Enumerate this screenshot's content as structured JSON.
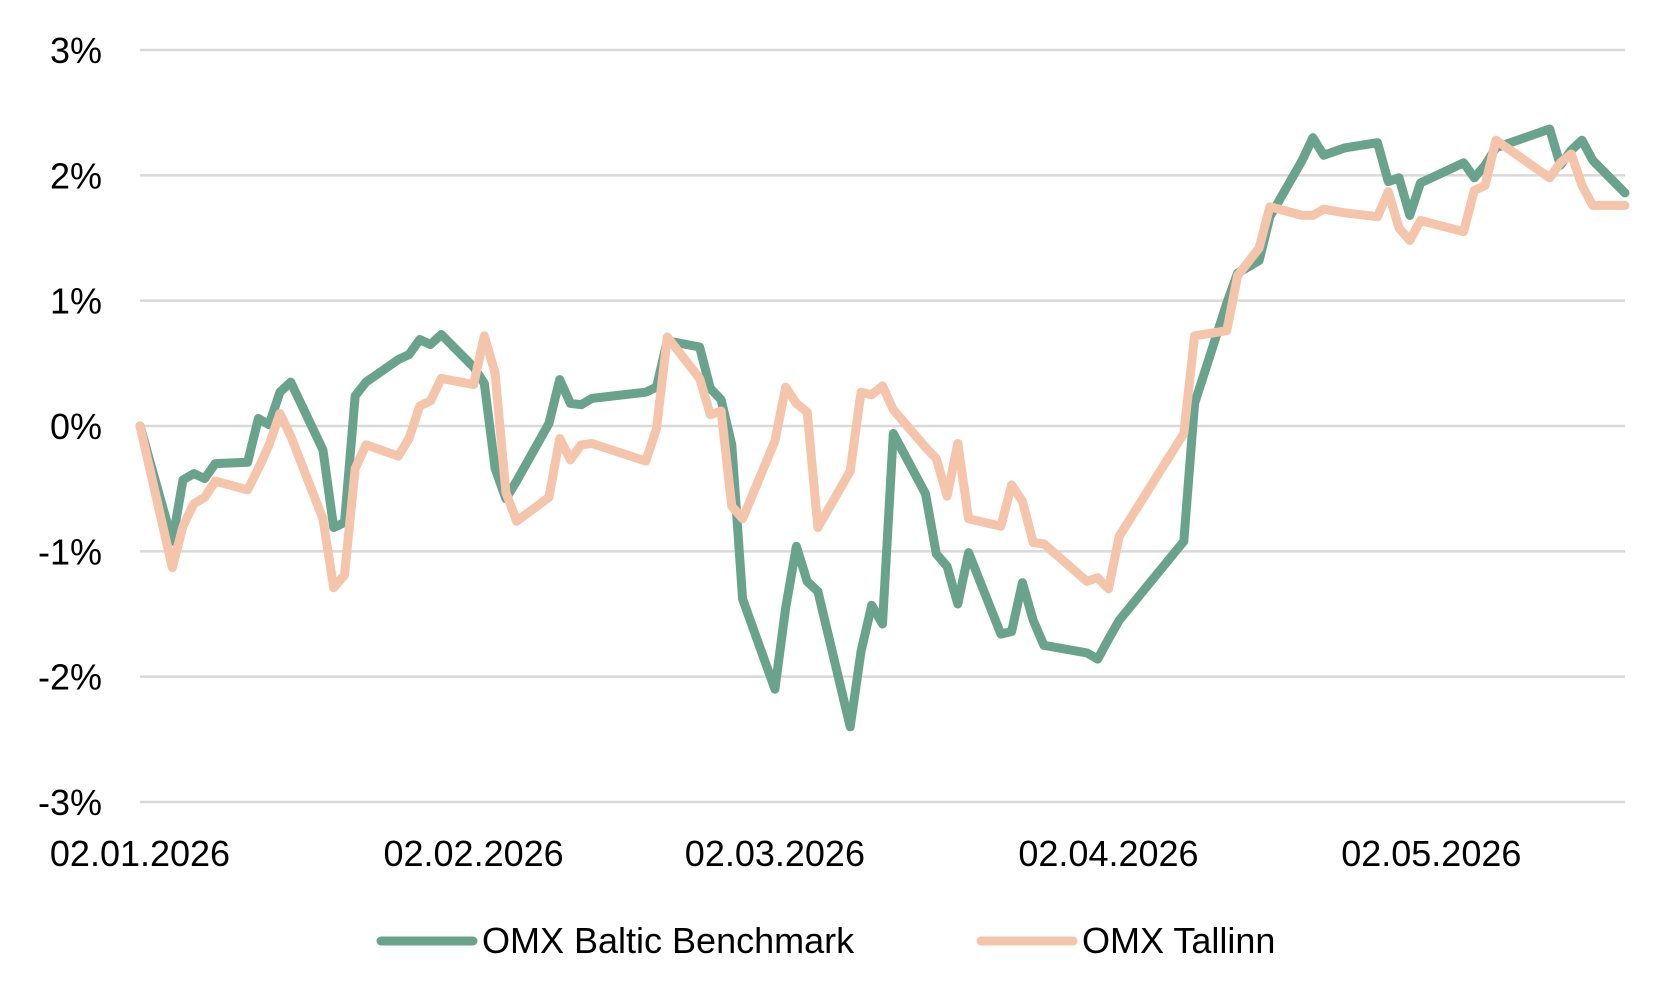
{
  "chart_data": {
    "type": "line",
    "title": "",
    "xlabel": "",
    "ylabel": "",
    "ylim": [
      -3,
      3
    ],
    "y_ticks": [
      3,
      2,
      1,
      0,
      -1,
      -2,
      -3
    ],
    "y_tick_labels": [
      "3%",
      "2%",
      "1%",
      "0%",
      "-1%",
      "-2%",
      "-3%"
    ],
    "x_range": [
      "2026-01-02",
      "2026-05-20"
    ],
    "x_ticks": [
      "2026-01-02",
      "2026-02-02",
      "2026-03-02",
      "2026-04-02",
      "2026-05-02"
    ],
    "x_tick_labels": [
      "02.01.2026",
      "02.02.2026",
      "02.03.2026",
      "02.04.2026",
      "02.05.2026"
    ],
    "grid": "horizontal",
    "legend": "bottom-center",
    "series": [
      {
        "name": "OMX Baltic Benchmark",
        "color": "#6aa38d",
        "points": [
          [
            "2026-01-02",
            0.0
          ],
          [
            "2026-01-05",
            -0.92
          ],
          [
            "2026-01-06",
            -0.43
          ],
          [
            "2026-01-07",
            -0.38
          ],
          [
            "2026-01-08",
            -0.42
          ],
          [
            "2026-01-09",
            -0.3
          ],
          [
            "2026-01-12",
            -0.29
          ],
          [
            "2026-01-13",
            0.06
          ],
          [
            "2026-01-14",
            0.01
          ],
          [
            "2026-01-15",
            0.27
          ],
          [
            "2026-01-16",
            0.35
          ],
          [
            "2026-01-19",
            -0.19
          ],
          [
            "2026-01-20",
            -0.81
          ],
          [
            "2026-01-21",
            -0.77
          ],
          [
            "2026-01-22",
            0.24
          ],
          [
            "2026-01-23",
            0.35
          ],
          [
            "2026-01-26",
            0.53
          ],
          [
            "2026-01-27",
            0.57
          ],
          [
            "2026-01-28",
            0.69
          ],
          [
            "2026-01-29",
            0.65
          ],
          [
            "2026-01-30",
            0.73
          ],
          [
            "2026-02-02",
            0.47
          ],
          [
            "2026-02-03",
            0.34
          ],
          [
            "2026-02-04",
            -0.34
          ],
          [
            "2026-02-05",
            -0.58
          ],
          [
            "2026-02-06",
            -0.44
          ],
          [
            "2026-02-09",
            0.02
          ],
          [
            "2026-02-10",
            0.37
          ],
          [
            "2026-02-11",
            0.18
          ],
          [
            "2026-02-12",
            0.17
          ],
          [
            "2026-02-13",
            0.22
          ],
          [
            "2026-02-18",
            0.27
          ],
          [
            "2026-02-19",
            0.31
          ],
          [
            "2026-02-20",
            0.68
          ],
          [
            "2026-02-23",
            0.63
          ],
          [
            "2026-02-24",
            0.3
          ],
          [
            "2026-02-25",
            0.21
          ],
          [
            "2026-02-26",
            -0.15
          ],
          [
            "2026-02-27",
            -1.38
          ],
          [
            "2026-03-02",
            -2.1
          ],
          [
            "2026-03-03",
            -1.45
          ],
          [
            "2026-03-04",
            -0.96
          ],
          [
            "2026-03-05",
            -1.24
          ],
          [
            "2026-03-06",
            -1.32
          ],
          [
            "2026-03-09",
            -2.4
          ],
          [
            "2026-03-10",
            -1.8
          ],
          [
            "2026-03-11",
            -1.43
          ],
          [
            "2026-03-12",
            -1.58
          ],
          [
            "2026-03-13",
            -0.06
          ],
          [
            "2026-03-16",
            -0.54
          ],
          [
            "2026-03-17",
            -1.02
          ],
          [
            "2026-03-18",
            -1.12
          ],
          [
            "2026-03-19",
            -1.42
          ],
          [
            "2026-03-20",
            -1.01
          ],
          [
            "2026-03-23",
            -1.66
          ],
          [
            "2026-03-24",
            -1.64
          ],
          [
            "2026-03-25",
            -1.25
          ],
          [
            "2026-03-26",
            -1.55
          ],
          [
            "2026-03-27",
            -1.75
          ],
          [
            "2026-03-31",
            -1.81
          ],
          [
            "2026-04-01",
            -1.86
          ],
          [
            "2026-04-02",
            -1.7
          ],
          [
            "2026-04-03",
            -1.55
          ],
          [
            "2026-04-09",
            -0.92
          ],
          [
            "2026-04-10",
            0.18
          ],
          [
            "2026-04-13",
            0.98
          ],
          [
            "2026-04-14",
            1.22
          ],
          [
            "2026-04-16",
            1.32
          ],
          [
            "2026-04-17",
            1.67
          ],
          [
            "2026-04-20",
            2.12
          ],
          [
            "2026-04-21",
            2.3
          ],
          [
            "2026-04-22",
            2.16
          ],
          [
            "2026-04-24",
            2.22
          ],
          [
            "2026-04-27",
            2.26
          ],
          [
            "2026-04-28",
            1.95
          ],
          [
            "2026-04-29",
            1.98
          ],
          [
            "2026-04-30",
            1.68
          ],
          [
            "2026-05-01",
            1.94
          ],
          [
            "2026-05-05",
            2.1
          ],
          [
            "2026-05-06",
            1.98
          ],
          [
            "2026-05-07",
            2.08
          ],
          [
            "2026-05-08",
            2.22
          ],
          [
            "2026-05-13",
            2.37
          ],
          [
            "2026-05-14",
            2.08
          ],
          [
            "2026-05-15",
            2.2
          ],
          [
            "2026-05-16",
            2.28
          ],
          [
            "2026-05-17",
            2.12
          ],
          [
            "2026-05-20",
            1.86
          ]
        ]
      },
      {
        "name": "OMX Tallinn",
        "color": "#f4c5ab",
        "points": [
          [
            "2026-01-02",
            0.0
          ],
          [
            "2026-01-05",
            -1.13
          ],
          [
            "2026-01-06",
            -0.8
          ],
          [
            "2026-01-07",
            -0.62
          ],
          [
            "2026-01-08",
            -0.57
          ],
          [
            "2026-01-09",
            -0.44
          ],
          [
            "2026-01-12",
            -0.51
          ],
          [
            "2026-01-13",
            -0.34
          ],
          [
            "2026-01-14",
            -0.15
          ],
          [
            "2026-01-15",
            0.1
          ],
          [
            "2026-01-16",
            -0.08
          ],
          [
            "2026-01-19",
            -0.74
          ],
          [
            "2026-01-20",
            -1.29
          ],
          [
            "2026-01-21",
            -1.19
          ],
          [
            "2026-01-22",
            -0.34
          ],
          [
            "2026-01-23",
            -0.15
          ],
          [
            "2026-01-26",
            -0.24
          ],
          [
            "2026-01-27",
            -0.1
          ],
          [
            "2026-01-28",
            0.16
          ],
          [
            "2026-01-29",
            0.2
          ],
          [
            "2026-01-30",
            0.38
          ],
          [
            "2026-02-02",
            0.33
          ],
          [
            "2026-02-03",
            0.72
          ],
          [
            "2026-02-04",
            0.42
          ],
          [
            "2026-02-05",
            -0.53
          ],
          [
            "2026-02-06",
            -0.76
          ],
          [
            "2026-02-09",
            -0.57
          ],
          [
            "2026-02-10",
            -0.1
          ],
          [
            "2026-02-11",
            -0.27
          ],
          [
            "2026-02-12",
            -0.15
          ],
          [
            "2026-02-13",
            -0.14
          ],
          [
            "2026-02-18",
            -0.28
          ],
          [
            "2026-02-19",
            -0.02
          ],
          [
            "2026-02-20",
            0.71
          ],
          [
            "2026-02-23",
            0.38
          ],
          [
            "2026-02-24",
            0.09
          ],
          [
            "2026-02-25",
            0.12
          ],
          [
            "2026-02-26",
            -0.64
          ],
          [
            "2026-02-27",
            -0.74
          ],
          [
            "2026-03-02",
            -0.12
          ],
          [
            "2026-03-03",
            0.31
          ],
          [
            "2026-03-04",
            0.18
          ],
          [
            "2026-03-05",
            0.11
          ],
          [
            "2026-03-06",
            -0.81
          ],
          [
            "2026-03-09",
            -0.36
          ],
          [
            "2026-03-10",
            0.27
          ],
          [
            "2026-03-11",
            0.25
          ],
          [
            "2026-03-12",
            0.32
          ],
          [
            "2026-03-13",
            0.13
          ],
          [
            "2026-03-16",
            -0.17
          ],
          [
            "2026-03-17",
            -0.26
          ],
          [
            "2026-03-18",
            -0.56
          ],
          [
            "2026-03-19",
            -0.14
          ],
          [
            "2026-03-20",
            -0.74
          ],
          [
            "2026-03-23",
            -0.8
          ],
          [
            "2026-03-24",
            -0.47
          ],
          [
            "2026-03-25",
            -0.6
          ],
          [
            "2026-03-26",
            -0.93
          ],
          [
            "2026-03-27",
            -0.94
          ],
          [
            "2026-03-31",
            -1.24
          ],
          [
            "2026-04-01",
            -1.21
          ],
          [
            "2026-04-02",
            -1.3
          ],
          [
            "2026-04-03",
            -0.88
          ],
          [
            "2026-04-09",
            -0.06
          ],
          [
            "2026-04-10",
            0.72
          ],
          [
            "2026-04-13",
            0.76
          ],
          [
            "2026-04-14",
            1.2
          ],
          [
            "2026-04-16",
            1.42
          ],
          [
            "2026-04-17",
            1.75
          ],
          [
            "2026-04-20",
            1.68
          ],
          [
            "2026-04-21",
            1.68
          ],
          [
            "2026-04-22",
            1.73
          ],
          [
            "2026-04-24",
            1.7
          ],
          [
            "2026-04-27",
            1.67
          ],
          [
            "2026-04-28",
            1.87
          ],
          [
            "2026-04-29",
            1.58
          ],
          [
            "2026-04-30",
            1.48
          ],
          [
            "2026-05-01",
            1.64
          ],
          [
            "2026-05-05",
            1.55
          ],
          [
            "2026-05-06",
            1.88
          ],
          [
            "2026-05-07",
            1.92
          ],
          [
            "2026-05-08",
            2.28
          ],
          [
            "2026-05-13",
            1.98
          ],
          [
            "2026-05-14",
            2.1
          ],
          [
            "2026-05-15",
            2.17
          ],
          [
            "2026-05-16",
            1.92
          ],
          [
            "2026-05-17",
            1.76
          ],
          [
            "2026-05-20",
            1.76
          ]
        ]
      }
    ]
  }
}
